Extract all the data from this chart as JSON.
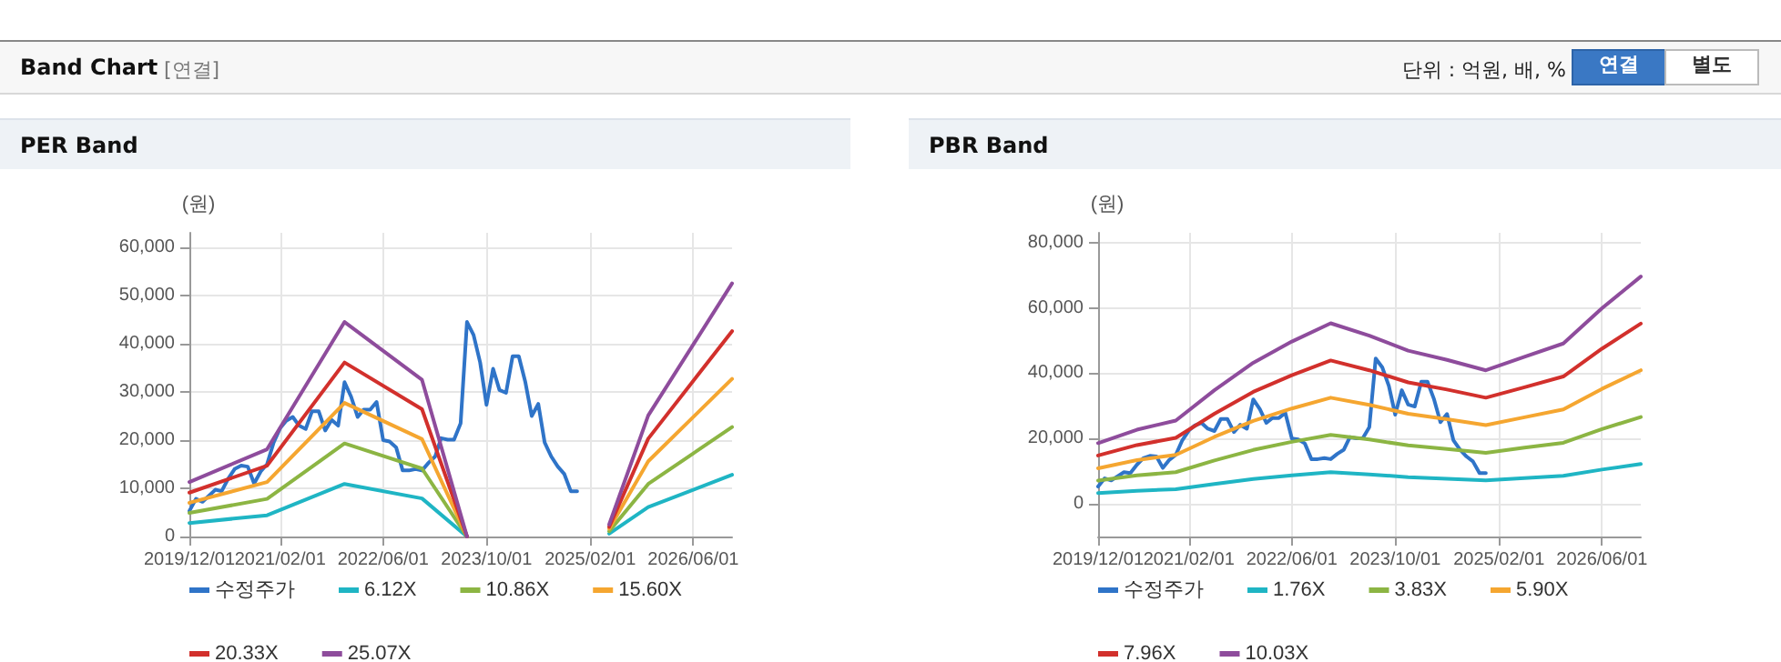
{
  "chart_data": [
    {
      "type": "other",
      "title": "Band Chart",
      "subtitle": "[연결]",
      "annotations": [
        "단위 : 억원, 배, %",
        "연결",
        "별도"
      ]
    },
    {
      "type": "line",
      "title": "PER Band",
      "ylabel": "(원)",
      "xlim": [
        "2019-12-01",
        "2026-12-01"
      ],
      "xticks": [
        {
          "value": "2019-12-01",
          "label": "2019/12/01"
        },
        {
          "value": "2021-02-01",
          "label": "2021/02/01"
        },
        {
          "value": "2022-06-01",
          "label": "2022/06/01"
        },
        {
          "value": "2023-10-01",
          "label": "2023/10/01"
        },
        {
          "value": "2025-02-01",
          "label": "2025/02/01"
        },
        {
          "value": "2026-06-01",
          "label": "2026/06/01"
        }
      ],
      "ylim": [
        0,
        63000
      ],
      "yticks": [
        0,
        {
          "value": 10000,
          "label": "10,000"
        },
        {
          "value": 20000,
          "label": "20,000"
        },
        {
          "value": 30000,
          "label": "30,000"
        },
        {
          "value": 40000,
          "label": "40,000"
        },
        {
          "value": 50000,
          "label": "50,000"
        },
        {
          "value": 60000,
          "label": "60,000"
        }
      ],
      "grid": true,
      "legend": "bottom",
      "marker": "none",
      "line_style": "solid",
      "series": [
        {
          "name": "수정주가",
          "color": "#2f74c8",
          "x": [
            "2019-12",
            "2020-01",
            "2020-02",
            "2020-03",
            "2020-04",
            "2020-05",
            "2020-06",
            "2020-07",
            "2020-08",
            "2020-09",
            "2020-10",
            "2020-11",
            "2020-12",
            "2021-01",
            "2021-02",
            "2021-03",
            "2021-04",
            "2021-05",
            "2021-06",
            "2021-07",
            "2021-08",
            "2021-09",
            "2021-10",
            "2021-11",
            "2021-12",
            "2022-01",
            "2022-02",
            "2022-03",
            "2022-04",
            "2022-05",
            "2022-06",
            "2022-07",
            "2022-08",
            "2022-09",
            "2022-10",
            "2022-11",
            "2022-12",
            "2023-01",
            "2023-02",
            "2023-03",
            "2023-04",
            "2023-05",
            "2023-06",
            "2023-07",
            "2023-08",
            "2023-09",
            "2023-10",
            "2023-11",
            "2023-12",
            "2024-01",
            "2024-02",
            "2024-03",
            "2024-04",
            "2024-05",
            "2024-06",
            "2024-07",
            "2024-08",
            "2024-09",
            "2024-10",
            "2024-11",
            "2024-12"
          ],
          "values": [
            5300,
            7800,
            7200,
            8400,
            9700,
            9400,
            12000,
            14000,
            14700,
            14500,
            11000,
            13500,
            15000,
            19500,
            22500,
            24000,
            24800,
            23000,
            22300,
            26000,
            26000,
            22000,
            24200,
            23000,
            32000,
            29000,
            24800,
            26300,
            26300,
            27900,
            20000,
            19700,
            18500,
            13700,
            13700,
            14000,
            13700,
            15300,
            16600,
            20400,
            20100,
            20100,
            23500,
            44500,
            41800,
            36100,
            27300,
            34800,
            30400,
            29800,
            37400,
            37400,
            32000,
            25000,
            27500,
            19500,
            16600,
            14500,
            13000,
            9400,
            9400
          ]
        },
        {
          "name": "6.12X",
          "color": "#1fb5c4",
          "x": [
            "2019-12",
            "2020-12",
            "2021-12",
            "2022-12",
            "2023-07",
            "2024-06",
            "2025-05",
            "2025-11",
            "2026-12"
          ],
          "values": [
            2800,
            4400,
            10900,
            7900,
            0,
            null,
            600,
            6100,
            12800
          ]
        },
        {
          "name": "10.86X",
          "color": "#8cb543",
          "x": [
            "2019-12",
            "2020-12",
            "2021-12",
            "2022-12",
            "2023-07",
            "2024-06",
            "2025-05",
            "2025-11",
            "2026-12"
          ],
          "values": [
            4900,
            7800,
            19300,
            14100,
            0,
            null,
            1100,
            10900,
            22700
          ]
        },
        {
          "name": "15.60X",
          "color": "#f5a630",
          "x": [
            "2019-12",
            "2020-12",
            "2021-12",
            "2022-12",
            "2023-07",
            "2024-06",
            "2025-05",
            "2025-11",
            "2026-12"
          ],
          "values": [
            7000,
            11300,
            27700,
            20200,
            0,
            null,
            1600,
            15600,
            32700
          ]
        },
        {
          "name": "20.33X",
          "color": "#d2302c",
          "x": [
            "2019-12",
            "2020-12",
            "2021-12",
            "2022-12",
            "2023-07",
            "2024-06",
            "2025-05",
            "2025-11",
            "2026-12"
          ],
          "values": [
            9100,
            14700,
            36100,
            26400,
            0,
            null,
            2000,
            20300,
            42600
          ]
        },
        {
          "name": "25.07X",
          "color": "#8e4c9c",
          "x": [
            "2019-12",
            "2020-12",
            "2021-12",
            "2022-12",
            "2023-07",
            "2024-06",
            "2025-05",
            "2025-11",
            "2026-12"
          ],
          "values": [
            11300,
            18100,
            44500,
            32500,
            0,
            null,
            2500,
            25100,
            52500
          ]
        }
      ]
    },
    {
      "type": "line",
      "title": "PBR Band",
      "ylabel": "(원)",
      "xlim": [
        "2019-12-01",
        "2026-12-01"
      ],
      "xticks": [
        {
          "value": "2019-12-01",
          "label": "2019/12/01"
        },
        {
          "value": "2021-02-01",
          "label": "2021/02/01"
        },
        {
          "value": "2022-06-01",
          "label": "2022/06/01"
        },
        {
          "value": "2023-10-01",
          "label": "2023/10/01"
        },
        {
          "value": "2025-02-01",
          "label": "2025/02/01"
        },
        {
          "value": "2026-06-01",
          "label": "2026/06/01"
        }
      ],
      "ylim": [
        -10000,
        83000
      ],
      "yticks": [
        0,
        {
          "value": 20000,
          "label": "20,000"
        },
        {
          "value": 40000,
          "label": "40,000"
        },
        {
          "value": 60000,
          "label": "60,000"
        },
        {
          "value": 80000,
          "label": "80,000"
        }
      ],
      "grid": true,
      "legend": "bottom",
      "marker": "none",
      "line_style": "solid",
      "series": [
        {
          "name": "수정주가",
          "color": "#2f74c8",
          "x": [
            "2019-12",
            "2020-01",
            "2020-02",
            "2020-03",
            "2020-04",
            "2020-05",
            "2020-06",
            "2020-07",
            "2020-08",
            "2020-09",
            "2020-10",
            "2020-11",
            "2020-12",
            "2021-01",
            "2021-02",
            "2021-03",
            "2021-04",
            "2021-05",
            "2021-06",
            "2021-07",
            "2021-08",
            "2021-09",
            "2021-10",
            "2021-11",
            "2021-12",
            "2022-01",
            "2022-02",
            "2022-03",
            "2022-04",
            "2022-05",
            "2022-06",
            "2022-07",
            "2022-08",
            "2022-09",
            "2022-10",
            "2022-11",
            "2022-12",
            "2023-01",
            "2023-02",
            "2023-03",
            "2023-04",
            "2023-05",
            "2023-06",
            "2023-07",
            "2023-08",
            "2023-09",
            "2023-10",
            "2023-11",
            "2023-12",
            "2024-01",
            "2024-02",
            "2024-03",
            "2024-04",
            "2024-05",
            "2024-06",
            "2024-07",
            "2024-08",
            "2024-09",
            "2024-10",
            "2024-11",
            "2024-12"
          ],
          "values": [
            5300,
            7800,
            7200,
            8400,
            9700,
            9400,
            12000,
            14000,
            14700,
            14500,
            11000,
            13500,
            15000,
            19500,
            22500,
            24000,
            24800,
            23000,
            22300,
            26000,
            26000,
            22000,
            24200,
            23000,
            32000,
            29000,
            24800,
            26300,
            26300,
            27900,
            20000,
            19700,
            18500,
            13700,
            13700,
            14000,
            13700,
            15300,
            16600,
            20400,
            20100,
            20100,
            23500,
            44500,
            41800,
            36100,
            27300,
            34800,
            30400,
            29800,
            37400,
            37400,
            32000,
            25000,
            27500,
            19500,
            16600,
            14500,
            13000,
            9400,
            9400
          ]
        },
        {
          "name": "1.76X",
          "color": "#1fb5c4",
          "x": [
            "2019-12",
            "2020-06",
            "2020-12",
            "2021-06",
            "2021-12",
            "2022-06",
            "2022-12",
            "2023-06",
            "2023-12",
            "2024-06",
            "2024-12",
            "2025-06",
            "2025-12",
            "2026-06",
            "2026-12"
          ],
          "values": [
            3300,
            4000,
            4500,
            6100,
            7600,
            8700,
            9700,
            9000,
            8200,
            7700,
            7200,
            7900,
            8600,
            10500,
            12200
          ]
        },
        {
          "name": "3.83X",
          "color": "#8cb543",
          "x": [
            "2019-12",
            "2020-06",
            "2020-12",
            "2021-06",
            "2021-12",
            "2022-06",
            "2022-12",
            "2023-06",
            "2023-12",
            "2024-06",
            "2024-12",
            "2025-06",
            "2025-12",
            "2026-06",
            "2026-12"
          ],
          "values": [
            7100,
            8700,
            9700,
            13300,
            16500,
            19000,
            21100,
            19700,
            17900,
            16800,
            15600,
            17200,
            18700,
            22900,
            26600
          ]
        },
        {
          "name": "5.90X",
          "color": "#f5a630",
          "x": [
            "2019-12",
            "2020-06",
            "2020-12",
            "2021-06",
            "2021-12",
            "2022-06",
            "2022-12",
            "2023-06",
            "2023-12",
            "2024-06",
            "2024-12",
            "2025-06",
            "2025-12",
            "2026-06",
            "2026-12"
          ],
          "values": [
            10900,
            13400,
            15000,
            20500,
            25400,
            29200,
            32500,
            30300,
            27600,
            25900,
            24100,
            26500,
            28900,
            35200,
            40900
          ]
        },
        {
          "name": "7.96X",
          "color": "#d2302c",
          "x": [
            "2019-12",
            "2020-06",
            "2020-12",
            "2021-06",
            "2021-12",
            "2022-06",
            "2022-12",
            "2023-06",
            "2023-12",
            "2024-06",
            "2024-12",
            "2025-06",
            "2025-12",
            "2026-06",
            "2026-12"
          ],
          "values": [
            14800,
            18000,
            20200,
            27600,
            34300,
            39400,
            43900,
            40900,
            37200,
            35000,
            32500,
            35700,
            39000,
            47500,
            55200
          ]
        },
        {
          "name": "10.03X",
          "color": "#8e4c9c",
          "x": [
            "2019-12",
            "2020-06",
            "2020-12",
            "2021-06",
            "2021-12",
            "2022-06",
            "2022-12",
            "2023-06",
            "2023-12",
            "2024-06",
            "2024-12",
            "2025-06",
            "2025-12",
            "2026-06",
            "2026-12"
          ],
          "values": [
            18600,
            22700,
            25500,
            34800,
            43200,
            49700,
            55300,
            51500,
            46900,
            44100,
            40900,
            45000,
            49100,
            59900,
            69600
          ]
        }
      ]
    }
  ]
}
